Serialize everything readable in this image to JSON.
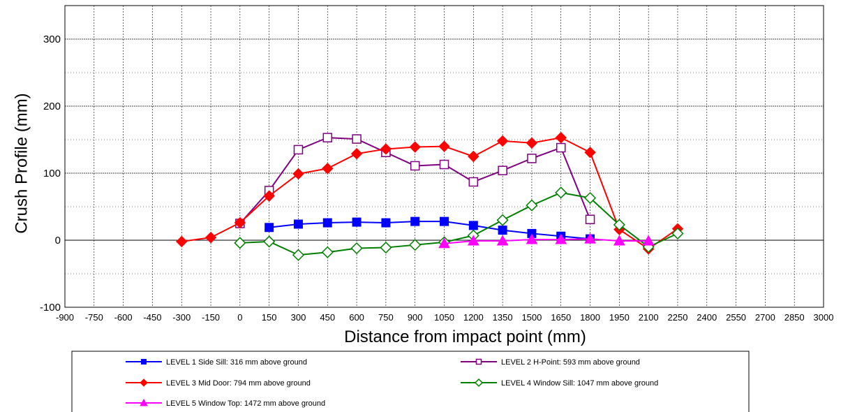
{
  "chart_data": {
    "type": "line",
    "title": "",
    "xlabel": "Distance from impact point (mm)",
    "ylabel": "Crush Profile (mm)",
    "xlim": [
      -900,
      3000
    ],
    "ylim": [
      -100,
      350
    ],
    "x_ticks": [
      "-900",
      "-750",
      "-600",
      "-450",
      "-300",
      "-150",
      "0",
      "150",
      "300",
      "450",
      "600",
      "750",
      "900",
      "1050",
      "1200",
      "1350",
      "1500",
      "1650",
      "1800",
      "1950",
      "2100",
      "2250",
      "2400",
      "2550",
      "2700",
      "2850",
      "3000"
    ],
    "y_ticks": [
      "-100",
      "0",
      "100",
      "200",
      "300"
    ],
    "grid": true,
    "legend_position": "bottom",
    "series": [
      {
        "name": "LEVEL 1 Side Sill:  316 mm above ground",
        "color": "#0000ff",
        "marker": "square-filled",
        "x": [
          150,
          300,
          450,
          600,
          750,
          900,
          1050,
          1200,
          1350,
          1500,
          1650,
          1800
        ],
        "y": [
          19,
          24,
          26,
          27,
          26,
          28,
          28,
          22,
          15,
          10,
          6,
          2
        ]
      },
      {
        "name": "LEVEL 2 H-Point:  593 mm above ground",
        "color": "#800080",
        "marker": "square-open",
        "x": [
          0,
          150,
          300,
          450,
          600,
          750,
          900,
          1050,
          1200,
          1350,
          1500,
          1650,
          1800
        ],
        "y": [
          25,
          74,
          135,
          153,
          151,
          131,
          111,
          113,
          87,
          104,
          122,
          138,
          31
        ]
      },
      {
        "name": "LEVEL 3 Mid Door:  794 mm above ground",
        "color": "#ff0000",
        "marker": "diamond-filled",
        "x": [
          -300,
          -150,
          0,
          150,
          300,
          450,
          600,
          750,
          900,
          1050,
          1200,
          1350,
          1500,
          1650,
          1800,
          1950,
          2100,
          2250
        ],
        "y": [
          -2,
          4,
          26,
          66,
          99,
          107,
          129,
          136,
          139,
          140,
          125,
          148,
          145,
          153,
          131,
          16,
          -13,
          17
        ]
      },
      {
        "name": "LEVEL 4 Window Sill:  1047 mm above ground",
        "color": "#008000",
        "marker": "diamond-open",
        "x": [
          0,
          150,
          300,
          450,
          600,
          750,
          900,
          1050,
          1200,
          1350,
          1500,
          1650,
          1800,
          1950,
          2100,
          2250
        ],
        "y": [
          -4,
          -2,
          -22,
          -18,
          -12,
          -11,
          -7,
          -3,
          7,
          30,
          52,
          71,
          63,
          23,
          -10,
          10
        ]
      },
      {
        "name": "LEVEL 5 Window Top:  1472 mm above ground",
        "color": "#ff00ff",
        "marker": "triangle-filled",
        "x": [
          1050,
          1200,
          1350,
          1500,
          1650,
          1800,
          1950,
          2100
        ],
        "y": [
          -5,
          -1,
          -1,
          1,
          1,
          2,
          -1,
          -1
        ]
      }
    ]
  }
}
